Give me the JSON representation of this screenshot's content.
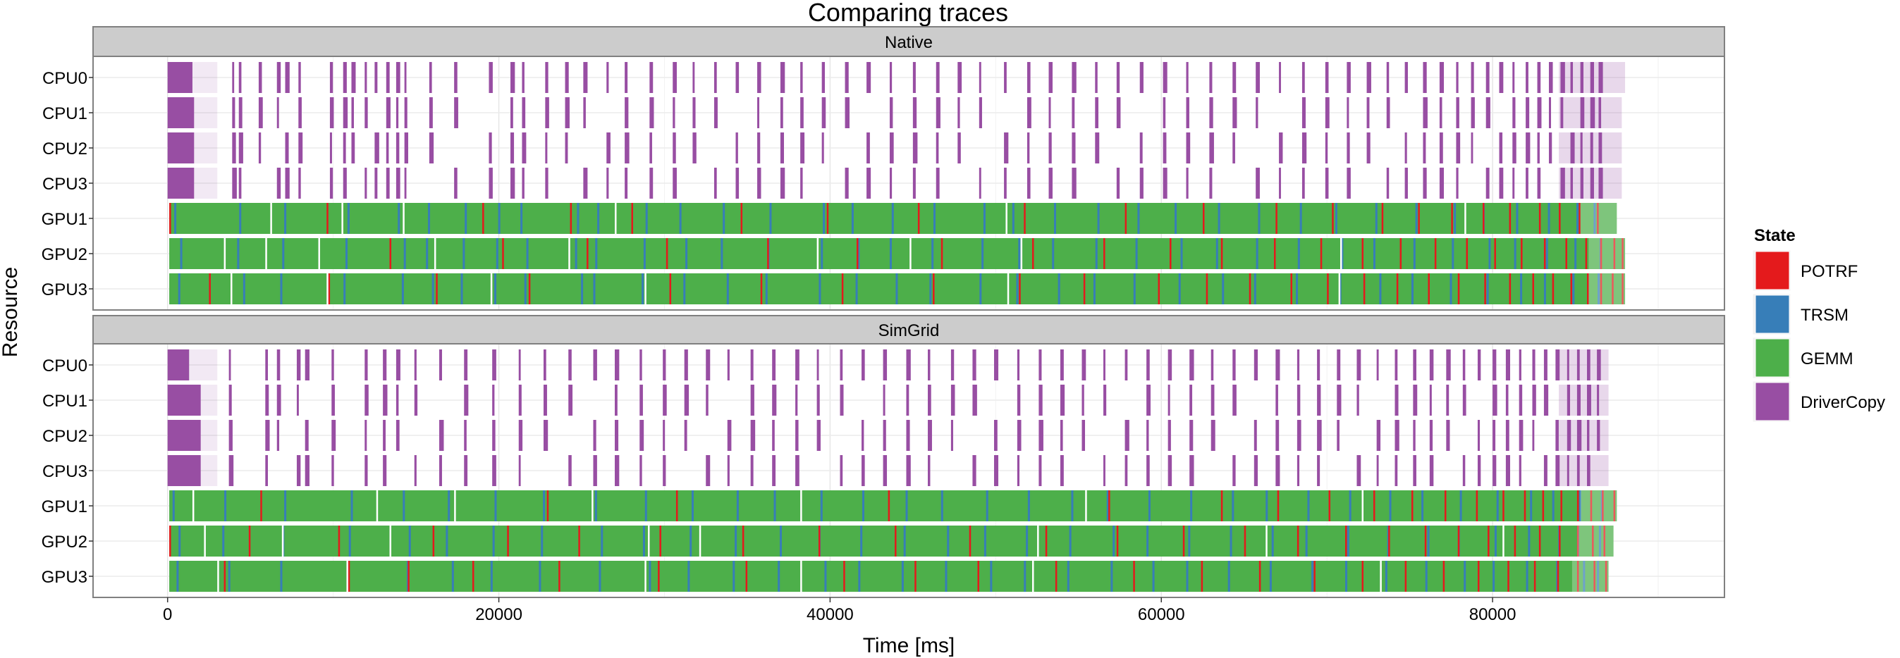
{
  "chart_data": {
    "type": "gantt",
    "title": "Comparing traces",
    "xlabel": "Time [ms]",
    "ylabel": "Resource",
    "xlim": [
      -4500,
      94000
    ],
    "x_ticks": [
      0,
      20000,
      40000,
      60000,
      80000
    ],
    "x_tick_labels": [
      "0",
      "20000",
      "40000",
      "60000",
      "80000"
    ],
    "grid": true,
    "legend": {
      "title": "State",
      "position": "right",
      "items": [
        {
          "label": "POTRF",
          "color": "#e41a1c"
        },
        {
          "label": "TRSM",
          "color": "#377eb8"
        },
        {
          "label": "GEMM",
          "color": "#4daf4a"
        },
        {
          "label": "DriverCopy",
          "color": "#984ea3"
        }
      ]
    },
    "resources": [
      "CPU0",
      "CPU1",
      "CPU2",
      "CPU3",
      "GPU1",
      "GPU2",
      "GPU3"
    ],
    "panels": [
      {
        "name": "Native",
        "end_time": {
          "CPU0": 88000,
          "CPU1": 87800,
          "CPU2": 87800,
          "CPU3": 87800,
          "GPU1": 87500,
          "GPU2": 88000,
          "GPU3": 88000
        },
        "initial_copy": {
          "CPU0": 1500,
          "CPU1": 1600,
          "CPU2": 1600,
          "CPU3": 1600
        },
        "copy_times": [
          3900,
          4300,
          5500,
          6600,
          7100,
          7900,
          9800,
          10600,
          11100,
          11900,
          12500,
          13200,
          13800,
          14300,
          15800,
          17300,
          19400,
          20700,
          21400,
          22800,
          24000,
          25100,
          26500,
          27600,
          29100,
          30500,
          31700,
          33000,
          34300,
          35600,
          37000,
          38200,
          39500,
          40900,
          42200,
          43600,
          45000,
          46400,
          47700,
          49000,
          50500,
          51900,
          53200,
          54600,
          56000,
          57300,
          58700,
          60100,
          61500,
          62900,
          64300,
          65700,
          67100,
          68500,
          69900,
          71200,
          72400,
          73600,
          74700,
          75800,
          76800,
          77800,
          78700,
          79600,
          80400,
          81200,
          82000,
          82700,
          83400,
          84100,
          84700,
          85300,
          85900,
          86400
        ],
        "trsm_times": [
          400,
          4200,
          6800,
          10500,
          13900,
          15600,
          17700,
          19600,
          21300,
          24600,
          25700,
          28500,
          30900,
          33400,
          36100,
          39200,
          41300,
          43600,
          46000,
          48900,
          51000,
          53400,
          55900,
          58200,
          60800,
          63300,
          65600,
          68000,
          70500,
          72800,
          75100,
          77300,
          79400,
          81300,
          83100,
          84700,
          86100
        ],
        "potrf_times": {
          "GPU1": [
            100,
            9600,
            19000,
            24300,
            28000,
            34600,
            39800,
            45300,
            51700,
            57800,
            62500,
            66900,
            70300,
            73300,
            75500,
            77500,
            79400,
            81000,
            82800,
            84000,
            85200,
            86300
          ],
          "GPU2": [
            13400,
            20200,
            25300,
            30100,
            36200,
            41600,
            46700,
            52200,
            56500,
            60500,
            63600,
            66800,
            69600,
            72100,
            74400,
            76500,
            78400,
            80100,
            81700,
            83100,
            84400,
            85600,
            86500,
            87300,
            87800
          ],
          "GPU3": [
            2500,
            9700,
            16200,
            21800,
            30300,
            35800,
            40700,
            46200,
            51400,
            55300,
            59800,
            62700,
            65300,
            67800,
            70000,
            72200,
            74200,
            76100,
            77900,
            79500,
            81000,
            82400,
            83600,
            84700,
            85700,
            86500,
            87200,
            87800
          ]
        },
        "gaps": {
          "GPU1": [
            6200,
            10500,
            14200,
            27000,
            50600,
            78300
          ],
          "GPU2": [
            3400,
            5900,
            9100,
            16100,
            24200,
            39200,
            44800,
            51500,
            70800
          ],
          "GPU3": [
            3800,
            9600,
            19500,
            28800,
            50700,
            70700
          ]
        }
      },
      {
        "name": "SimGrid",
        "end_time": {
          "CPU0": 87000,
          "CPU1": 87000,
          "CPU2": 87000,
          "CPU3": 87000,
          "GPU1": 87500,
          "GPU2": 87300,
          "GPU3": 87000
        },
        "initial_copy": {
          "CPU0": 1300,
          "CPU1": 2000,
          "CPU2": 2000,
          "CPU3": 2000
        },
        "copy_times": [
          3700,
          5900,
          6600,
          7800,
          8300,
          9900,
          11900,
          13000,
          13800,
          14900,
          16400,
          17900,
          19600,
          21200,
          22700,
          24200,
          25700,
          27000,
          28500,
          29900,
          31200,
          32500,
          33800,
          35200,
          36500,
          37900,
          39200,
          40600,
          41900,
          43200,
          44600,
          45900,
          47300,
          48600,
          49900,
          51300,
          52600,
          53900,
          55200,
          56500,
          57800,
          59100,
          60400,
          61700,
          63000,
          64300,
          65600,
          66900,
          68200,
          69400,
          70600,
          71800,
          73000,
          74100,
          75200,
          76200,
          77200,
          78200,
          79100,
          80000,
          80800,
          81600,
          82400,
          83100,
          83800,
          84500,
          85100,
          85700,
          86300
        ],
        "trsm_times": [
          300,
          3300,
          6800,
          10700,
          14200,
          16800,
          19500,
          22300,
          25800,
          28700,
          31400,
          34000,
          36600,
          39300,
          41700,
          44200,
          46700,
          49300,
          51700,
          54200,
          56700,
          59100,
          61500,
          63900,
          66300,
          68700,
          71100,
          73400,
          75700,
          77900,
          80000,
          81900,
          83600,
          85100,
          86300
        ],
        "potrf_times": {
          "GPU1": [
            5600,
            22900,
            30700,
            43500,
            56800,
            63600,
            67000,
            70100,
            72800,
            75100,
            77100,
            79000,
            80600,
            81900,
            83000,
            84100,
            85100,
            85900,
            86600,
            87300
          ],
          "GPU2": [
            100,
            4900,
            10300,
            16000,
            20500,
            24800,
            29700,
            34700,
            39300,
            43900,
            48400,
            53000,
            57300,
            61300,
            65000,
            68200,
            71100,
            73700,
            75900,
            77900,
            79700,
            81300,
            82800,
            84000,
            85100,
            86000,
            86700
          ],
          "GPU3": [
            3400,
            10900,
            14500,
            18400,
            23600,
            29600,
            34900,
            40800,
            45100,
            48900,
            53600,
            58300,
            62400,
            65900,
            69200,
            72100,
            74700,
            77000,
            79100,
            80900,
            82500,
            83900,
            85100,
            86100,
            86800
          ]
        },
        "gaps": {
          "GPU1": [
            1500,
            12600,
            17300,
            25600,
            38200,
            55400,
            72100
          ],
          "GPU2": [
            2200,
            6900,
            13400,
            29000,
            32100,
            52500,
            66300,
            80600
          ],
          "GPU3": [
            3000,
            10800,
            28800,
            38200,
            52200,
            73200
          ]
        }
      }
    ]
  }
}
